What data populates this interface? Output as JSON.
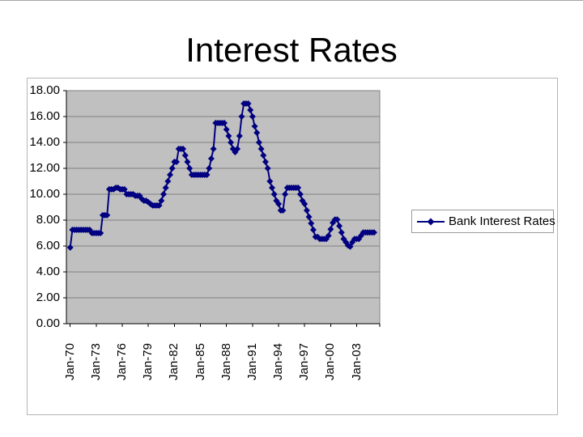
{
  "slide": {
    "title": "Interest Rates"
  },
  "legend": {
    "label": "Bank Interest Rates"
  },
  "axes": {
    "y_tick_labels": [
      "18.00",
      "16.00",
      "14.00",
      "12.00",
      "10.00",
      "8.00",
      "6.00",
      "4.00",
      "2.00",
      "0.00"
    ],
    "x_tick_labels": [
      "Jan-70",
      "Jan-73",
      "Jan-76",
      "Jan-79",
      "Jan-82",
      "Jan-85",
      "Jan-88",
      "Jan-91",
      "Jan-94",
      "Jan-97",
      "Jan-00",
      "Jan-03"
    ]
  },
  "colors": {
    "series": "#000080",
    "plot_background": "#c0c0c0",
    "gridline": "#808080",
    "axis": "#000000",
    "chart_border": "#b5b5b5",
    "legend_border": "#9a9a9a"
  },
  "chart_data": {
    "type": "line",
    "title": "Interest Rates",
    "legend_position": "right",
    "grid": true,
    "marker": "diamond",
    "ylim": [
      0,
      18
    ],
    "y_tick_step": 2,
    "x_start": "Jan-1970",
    "x_end": "Jan-2005",
    "x_interval": "quarterly",
    "x_tick_every_years": 3,
    "series": [
      {
        "name": "Bank Interest Rates",
        "values": [
          5.88,
          7.25,
          7.25,
          7.25,
          7.25,
          7.25,
          7.25,
          7.25,
          7.25,
          7.25,
          7.0,
          7.0,
          7.0,
          7.0,
          7.0,
          8.38,
          8.38,
          8.38,
          10.38,
          10.38,
          10.38,
          10.5,
          10.5,
          10.38,
          10.38,
          10.38,
          10.0,
          10.0,
          10.0,
          10.0,
          9.88,
          9.88,
          9.88,
          9.63,
          9.5,
          9.5,
          9.38,
          9.25,
          9.13,
          9.13,
          9.13,
          9.13,
          9.5,
          10.0,
          10.5,
          11.0,
          11.5,
          12.0,
          12.5,
          12.5,
          13.5,
          13.5,
          13.5,
          13.0,
          12.5,
          12.0,
          11.5,
          11.5,
          11.5,
          11.5,
          11.5,
          11.5,
          11.5,
          11.5,
          12.0,
          12.75,
          13.5,
          15.5,
          15.5,
          15.5,
          15.5,
          15.5,
          15.0,
          14.5,
          14.0,
          13.5,
          13.25,
          13.5,
          14.5,
          16.0,
          17.0,
          17.0,
          17.0,
          16.5,
          16.0,
          15.25,
          14.75,
          14.0,
          13.5,
          13.0,
          12.5,
          12.0,
          11.0,
          10.5,
          10.0,
          9.5,
          9.25,
          8.75,
          8.75,
          10.0,
          10.5,
          10.5,
          10.5,
          10.5,
          10.5,
          10.5,
          10.0,
          9.5,
          9.25,
          8.75,
          8.25,
          7.75,
          7.25,
          6.7,
          6.7,
          6.55,
          6.55,
          6.55,
          6.55,
          6.8,
          7.3,
          7.8,
          8.05,
          8.05,
          7.55,
          7.05,
          6.55,
          6.3,
          6.05,
          5.95,
          6.3,
          6.55,
          6.55,
          6.55,
          6.8,
          7.05,
          7.05,
          7.05,
          7.05,
          7.05,
          7.05
        ]
      }
    ]
  }
}
